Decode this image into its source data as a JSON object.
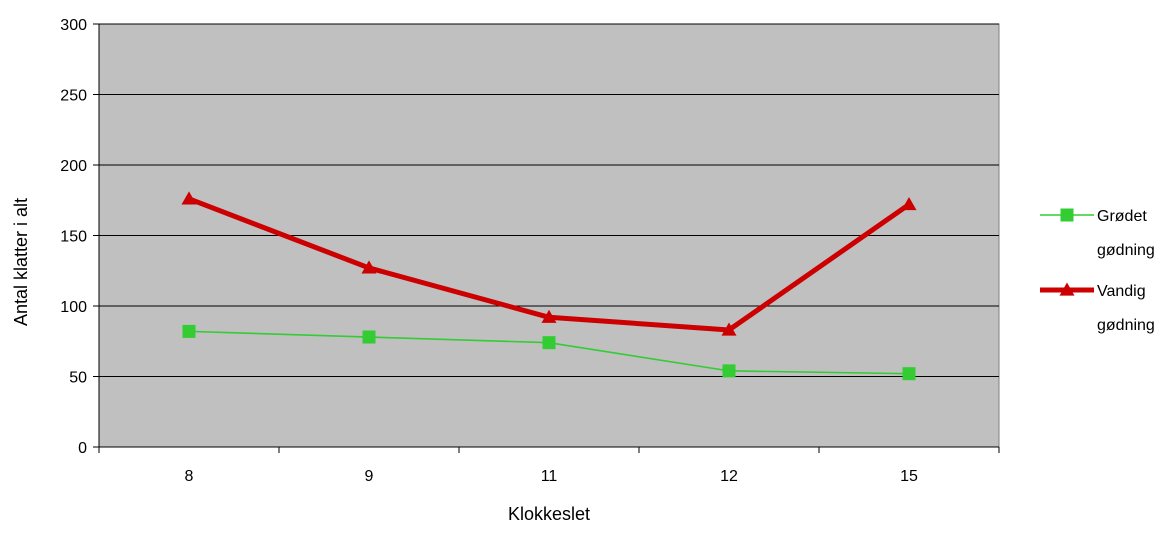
{
  "chart_data": {
    "type": "line",
    "title": "",
    "xlabel": "Klokkeslet",
    "ylabel": "Antal klatter i alt",
    "categories": [
      "8",
      "9",
      "11",
      "12",
      "15"
    ],
    "ylim": [
      0,
      300
    ],
    "yticks": [
      0,
      50,
      100,
      150,
      200,
      250,
      300
    ],
    "grid": true,
    "plot_background": "#c0c0c0",
    "legend_position": "right",
    "series": [
      {
        "name_lines": [
          "Grødet",
          "gødning"
        ],
        "values": [
          82,
          78,
          74,
          54,
          52
        ],
        "color": "#33cc33",
        "marker": "square"
      },
      {
        "name_lines": [
          "Vandig",
          "gødning"
        ],
        "values": [
          176,
          127,
          92,
          83,
          172
        ],
        "color": "#cc0000",
        "marker": "triangle"
      }
    ]
  }
}
